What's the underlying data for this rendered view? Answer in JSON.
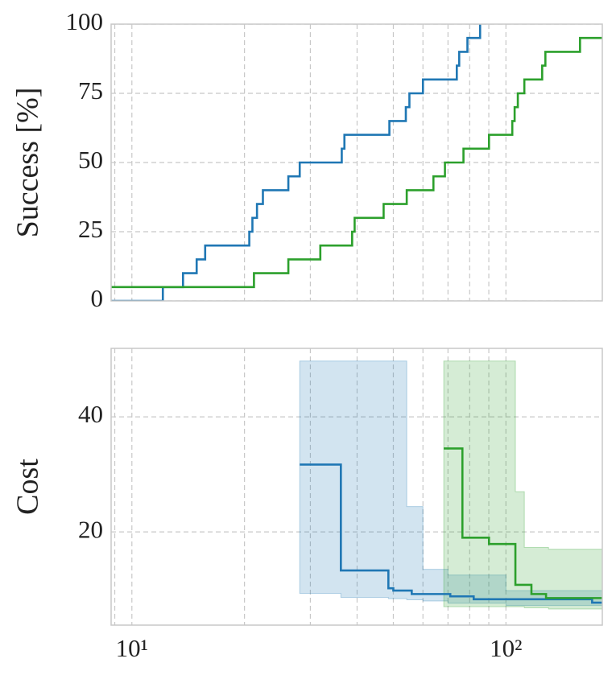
{
  "chart_data": [
    {
      "type": "line",
      "ylabel": "Success [%]",
      "step": "post",
      "sharex": true,
      "ylim": [
        0,
        100
      ],
      "yticks": [
        0,
        25,
        50,
        75,
        100
      ],
      "grid": true,
      "minor_grid": true,
      "series": [
        {
          "color": "#1f77b4",
          "x": [
            8.8,
            12.1,
            13.7,
            14.9,
            15.7,
            20.6,
            21.0,
            21.6,
            22.4,
            26.2,
            28.1,
            36.4,
            37.0,
            48.8,
            54.0,
            55.2,
            60.0,
            73.9,
            75.0,
            78.9,
            85.3
          ],
          "values": [
            0,
            5,
            10,
            15,
            20,
            25,
            30,
            35,
            40,
            45,
            50,
            55,
            60,
            65,
            70,
            75,
            80,
            85,
            90,
            95,
            100
          ]
        },
        {
          "color": "#2ca02c",
          "x": [
            8.8,
            21.2,
            26.2,
            31.9,
            38.8,
            39.4,
            47.1,
            54.3,
            64.0,
            68.7,
            77.0,
            90.1,
            104,
            105.5,
            107.6,
            112,
            125,
            127.5,
            157.8,
            181
          ],
          "values": [
            5,
            10,
            15,
            20,
            25,
            30,
            35,
            40,
            45,
            50,
            55,
            60,
            65,
            70,
            75,
            80,
            85,
            90,
            95,
            95
          ]
        }
      ]
    },
    {
      "type": "line",
      "ylabel": "Cost",
      "step": "post",
      "xscale": "log",
      "xlim": [
        8.8,
        181
      ],
      "xticks": [
        {
          "value": 10,
          "label": "10¹"
        },
        {
          "value": 100,
          "label": "10²"
        }
      ],
      "xminorticks": [
        9,
        20,
        30,
        40,
        50,
        60,
        70,
        80,
        90
      ],
      "ylim": [
        3.8,
        51.9
      ],
      "yticks": [
        20,
        40
      ],
      "grid": true,
      "minor_grid": true,
      "bands": [
        {
          "color": "#1f77b4",
          "opacity": 0.2,
          "x": [
            28.1,
            36.2,
            48.5,
            54.3,
            60,
            70,
            100,
            181
          ],
          "upper": [
            49.7,
            49.7,
            49.7,
            24.4,
            13.5,
            12.5,
            9.8,
            9.3
          ],
          "lower": [
            9.3,
            8.6,
            8.4,
            8.2,
            8.0,
            7.6,
            7.2,
            6.8
          ]
        },
        {
          "color": "#2ca02c",
          "opacity": 0.2,
          "x": [
            68.2,
            106,
            112,
            130,
            181
          ],
          "upper": [
            49.7,
            27,
            17.3,
            17.0,
            17.0
          ],
          "lower": [
            7.0,
            7.0,
            6.8,
            6.6,
            6.6
          ]
        }
      ],
      "series": [
        {
          "color": "#1f77b4",
          "x": [
            28.1,
            36.2,
            48.5,
            50,
            56,
            71,
            82,
            170,
            181
          ],
          "values": [
            31.7,
            13.3,
            10.2,
            9.8,
            9.2,
            8.8,
            8.3,
            7.7,
            7.7
          ]
        },
        {
          "color": "#2ca02c",
          "x": [
            68.2,
            76.5,
            90.1,
            106,
            117,
            128,
            181
          ],
          "values": [
            34.5,
            19,
            17.9,
            10.8,
            9.2,
            8.5,
            8.5
          ]
        }
      ]
    }
  ]
}
